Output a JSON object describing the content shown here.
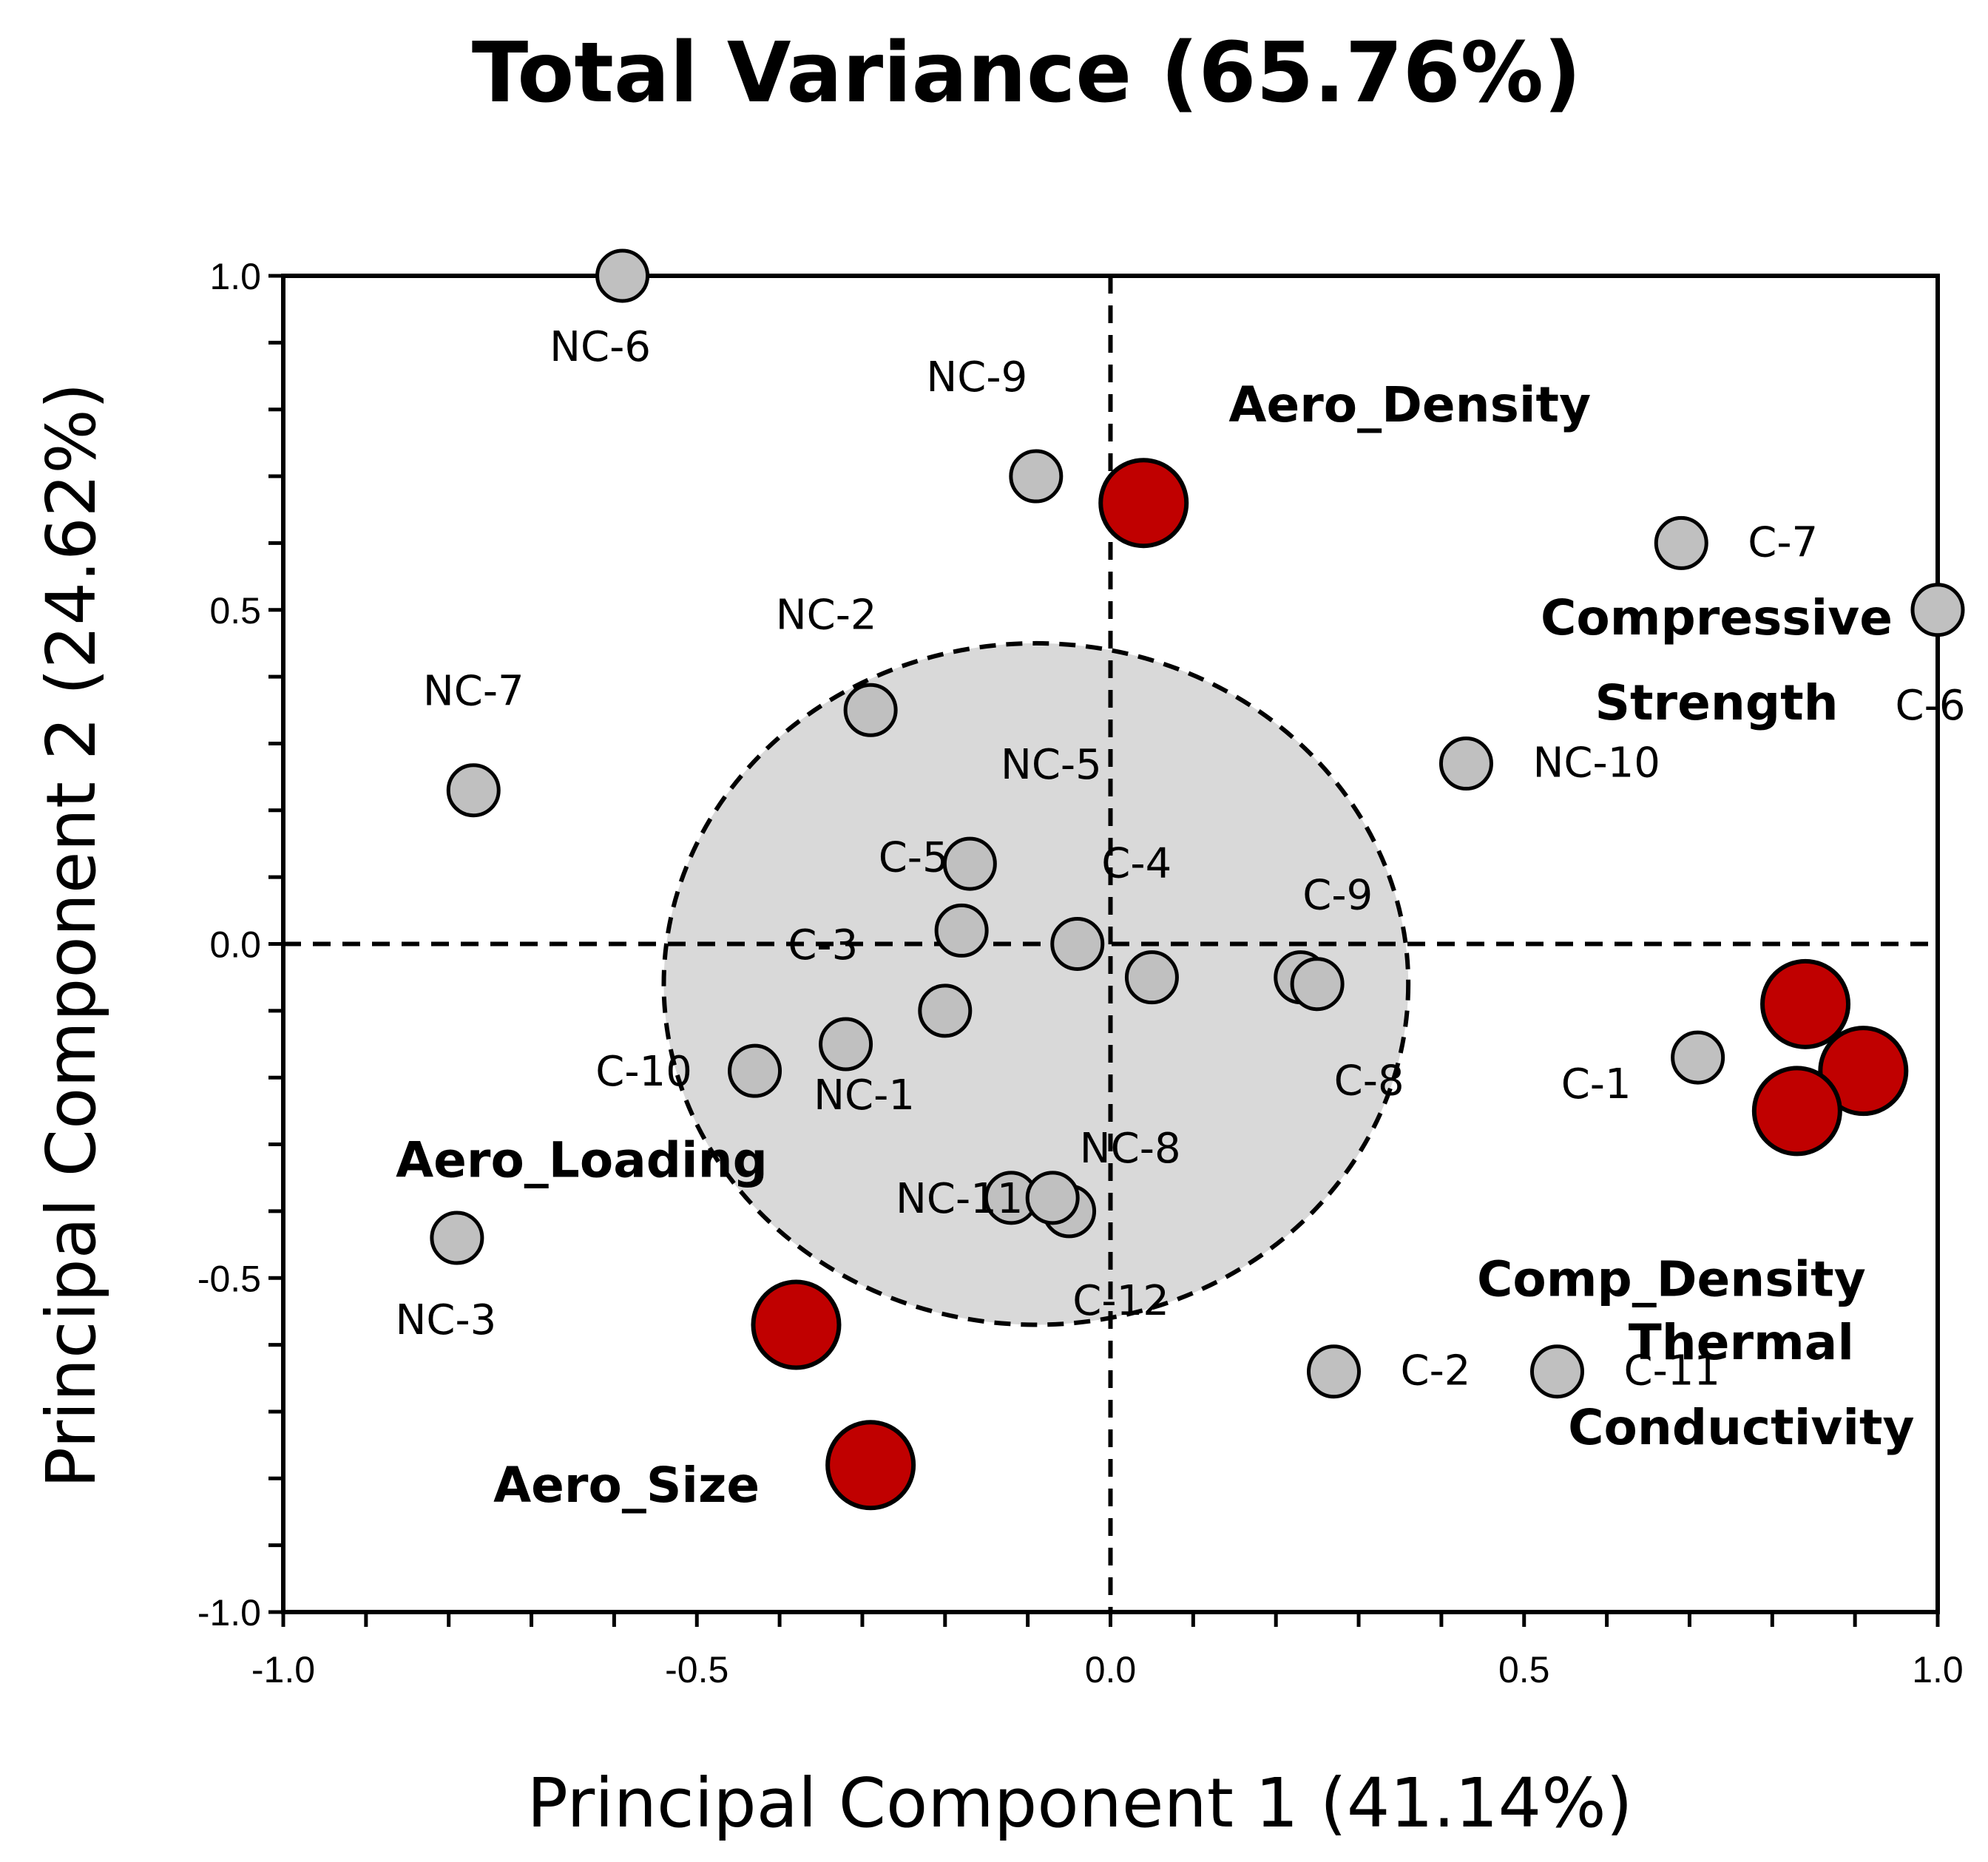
{
  "chart_data": {
    "type": "scatter",
    "title": "Total Variance (65.76%)",
    "xlabel": "Principal Component 1 (41.14%)",
    "ylabel": "Principal Component 2 (24.62%)",
    "xlim": [
      -1.0,
      1.0
    ],
    "ylim": [
      -1.0,
      1.0
    ],
    "x_ticks": [
      {
        "value": -1.0,
        "label": "-1.0"
      },
      {
        "value": -0.5,
        "label": "-0.5"
      },
      {
        "value": 0.0,
        "label": "0.0"
      },
      {
        "value": 0.5,
        "label": "0.5"
      },
      {
        "value": 1.0,
        "label": "1.0"
      }
    ],
    "y_ticks": [
      {
        "value": 1.0,
        "label": "1.0"
      },
      {
        "value": 0.5,
        "label": "0.5"
      },
      {
        "value": 0.0,
        "label": "0.0"
      },
      {
        "value": -0.5,
        "label": "-0.5"
      },
      {
        "value": -1.0,
        "label": "-1.0"
      }
    ],
    "cluster_ellipse": {
      "cx": -0.09,
      "cy": -0.06,
      "rx": 0.45,
      "ry": 0.51
    },
    "samples": [
      {
        "x": -0.59,
        "y": 1.0,
        "label": "NC-6"
      },
      {
        "x": -0.09,
        "y": 0.7,
        "label": "NC-9"
      },
      {
        "x": -0.29,
        "y": 0.35,
        "label": "NC-2"
      },
      {
        "x": -0.77,
        "y": 0.23,
        "label": "NC-7"
      },
      {
        "x": -0.17,
        "y": 0.12,
        "label": "NC-5"
      },
      {
        "x": -0.18,
        "y": 0.02,
        "label": "C-5"
      },
      {
        "x": -0.04,
        "y": 0.0,
        "label": "C-4"
      },
      {
        "x": 0.05,
        "y": -0.05,
        "label": ""
      },
      {
        "x": -0.2,
        "y": -0.1,
        "label": "C-3"
      },
      {
        "x": -0.32,
        "y": -0.15,
        "label": "NC-1"
      },
      {
        "x": -0.43,
        "y": -0.19,
        "label": "C-10"
      },
      {
        "x": 0.23,
        "y": -0.05,
        "label": "C-9"
      },
      {
        "x": 0.25,
        "y": -0.06,
        "label": "C-8"
      },
      {
        "x": -0.12,
        "y": -0.38,
        "label": "NC-11"
      },
      {
        "x": -0.05,
        "y": -0.4,
        "label": "C-12"
      },
      {
        "x": -0.07,
        "y": -0.38,
        "label": "NC-8"
      },
      {
        "x": -0.79,
        "y": -0.44,
        "label": "NC-3"
      },
      {
        "x": 0.27,
        "y": -0.64,
        "label": "C-2"
      },
      {
        "x": 0.54,
        "y": -0.64,
        "label": "C-11"
      },
      {
        "x": 0.43,
        "y": 0.27,
        "label": "NC-10"
      },
      {
        "x": 0.69,
        "y": 0.6,
        "label": "C-7"
      },
      {
        "x": 1.0,
        "y": 0.5,
        "label": "C-6"
      },
      {
        "x": 0.71,
        "y": -0.17,
        "label": "C-1"
      }
    ],
    "variables": [
      {
        "x": 0.04,
        "y": 0.66,
        "label": "Aero_Density"
      },
      {
        "x": 0.84,
        "y": -0.09,
        "label": "Compressive Strength"
      },
      {
        "x": 0.91,
        "y": -0.19,
        "label": "Thermal Conductivity"
      },
      {
        "x": 0.83,
        "y": -0.25,
        "label": "Comp_Density"
      },
      {
        "x": -0.38,
        "y": -0.57,
        "label": "Aero_Loading"
      },
      {
        "x": -0.29,
        "y": -0.78,
        "label": "Aero_Size"
      }
    ],
    "colors": {
      "sample": "#c0c0c0",
      "variable": "#c00000",
      "outline": "#000000",
      "ellipse": "#d9d9d9"
    }
  }
}
